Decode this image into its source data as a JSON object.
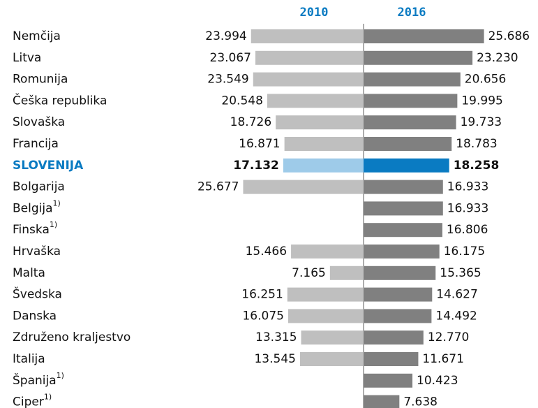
{
  "chart_data": {
    "type": "butterfly-bar",
    "categories": [
      "Nemčija",
      "Litva",
      "Romunija",
      "Češka republika",
      "Slovaška",
      "Francija",
      "SLOVENIJA",
      "Bolgarija",
      "Belgija",
      "Finska",
      "Hrvaška",
      "Malta",
      "Švedska",
      "Danska",
      "Združeno kraljestvo",
      "Italija",
      "Španija",
      "Ciper"
    ],
    "category_notes": [
      null,
      null,
      null,
      null,
      null,
      null,
      null,
      null,
      "1)",
      "1)",
      null,
      null,
      null,
      null,
      null,
      null,
      "1)",
      "1)"
    ],
    "highlight_category": "SLOVENIJA",
    "series": [
      {
        "name": "2010",
        "color": "#bfbfbf",
        "highlight_color": "#9ecbe9",
        "values": [
          23994,
          23067,
          23549,
          20548,
          18726,
          16871,
          17132,
          25677,
          null,
          null,
          15466,
          7165,
          16251,
          16075,
          13315,
          13545,
          null,
          null
        ],
        "value_labels": [
          "23.994",
          "23.067",
          "23.549",
          "20.548",
          "18.726",
          "16.871",
          "17.132",
          "25.677",
          null,
          null,
          "15.466",
          "7.165",
          "16.251",
          "16.075",
          "13.315",
          "13.545",
          null,
          null
        ]
      },
      {
        "name": "2016",
        "color": "#808080",
        "highlight_color": "#0a7bc2",
        "values": [
          25686,
          23230,
          20656,
          19995,
          19733,
          18783,
          18258,
          16933,
          16933,
          16806,
          16175,
          15365,
          14627,
          14492,
          12770,
          11671,
          10423,
          7638
        ],
        "value_labels": [
          "25.686",
          "23.230",
          "20.656",
          "19.995",
          "19.733",
          "18.783",
          "18.258",
          "16.933",
          "16.933",
          "16.806",
          "16.175",
          "15.365",
          "14.627",
          "14.492",
          "12.770",
          "11.671",
          "10.423",
          "7.638"
        ]
      }
    ]
  }
}
